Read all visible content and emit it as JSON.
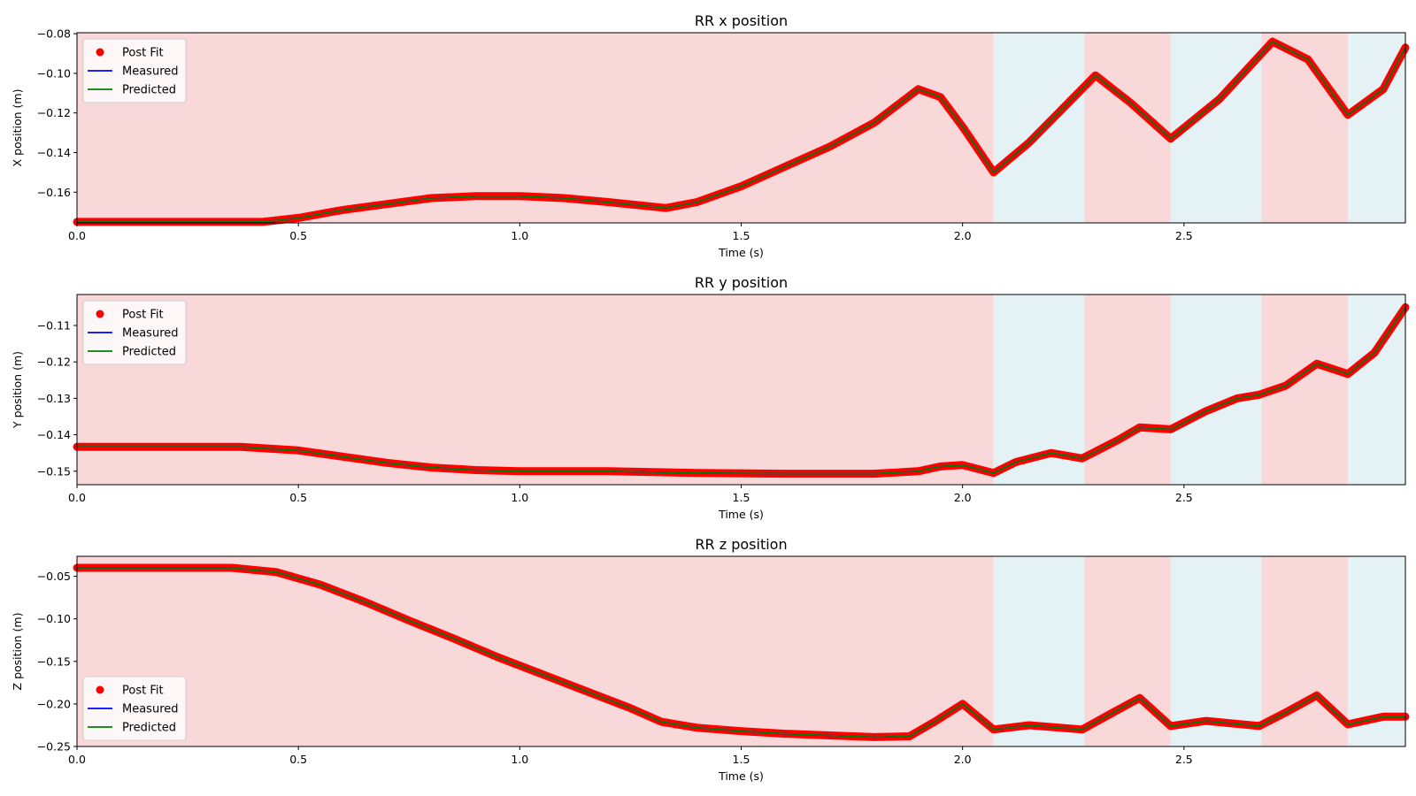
{
  "chart_data": [
    {
      "type": "line",
      "title": "RR x position",
      "xlabel": "Time (s)",
      "ylabel": "X position (m)",
      "xlim": [
        0,
        3.0
      ],
      "ylim": [
        -0.1755,
        -0.0795
      ],
      "xticks": [
        0,
        0.5,
        1.0,
        1.5,
        2.0,
        2.5
      ],
      "xtick_labels": [
        "0.0",
        "0.5",
        "1.0",
        "1.5",
        "2.0",
        "2.5"
      ],
      "yticks": [
        -0.16,
        -0.14,
        -0.12,
        -0.1,
        -0.08
      ],
      "ytick_labels": [
        "−0.16",
        "−0.14",
        "−0.12",
        "−0.10",
        "−0.08"
      ],
      "legend_position": "upper-left",
      "x": [
        0,
        0.1,
        0.2,
        0.3,
        0.42,
        0.5,
        0.6,
        0.7,
        0.8,
        0.9,
        1.0,
        1.1,
        1.2,
        1.33,
        1.4,
        1.5,
        1.6,
        1.7,
        1.8,
        1.9,
        1.95,
        2.0,
        2.07,
        2.15,
        2.3,
        2.38,
        2.47,
        2.58,
        2.7,
        2.78,
        2.87,
        2.95,
        3.0
      ],
      "series": [
        {
          "name": "Post Fit",
          "style": "markers",
          "color": "#ff0000",
          "values": [
            -0.175,
            -0.175,
            -0.175,
            -0.175,
            -0.175,
            -0.173,
            -0.169,
            -0.166,
            -0.163,
            -0.162,
            -0.162,
            -0.163,
            -0.165,
            -0.168,
            -0.165,
            -0.157,
            -0.147,
            -0.137,
            -0.125,
            -0.108,
            -0.112,
            -0.127,
            -0.15,
            -0.135,
            -0.101,
            -0.115,
            -0.133,
            -0.113,
            -0.084,
            -0.093,
            -0.121,
            -0.108,
            -0.087
          ]
        },
        {
          "name": "Measured",
          "style": "line",
          "color": "#0000ff",
          "values": [
            -0.175,
            -0.175,
            -0.175,
            -0.175,
            -0.175,
            -0.173,
            -0.169,
            -0.166,
            -0.163,
            -0.162,
            -0.162,
            -0.163,
            -0.165,
            -0.168,
            -0.165,
            -0.157,
            -0.147,
            -0.137,
            -0.125,
            -0.108,
            -0.112,
            -0.127,
            -0.15,
            -0.135,
            -0.101,
            -0.115,
            -0.133,
            -0.113,
            -0.084,
            -0.093,
            -0.121,
            -0.108,
            -0.087
          ]
        },
        {
          "name": "Predicted",
          "style": "line",
          "color": "#008000",
          "values": [
            -0.175,
            -0.175,
            -0.175,
            -0.175,
            -0.175,
            -0.173,
            -0.169,
            -0.166,
            -0.163,
            -0.162,
            -0.162,
            -0.163,
            -0.165,
            -0.168,
            -0.165,
            -0.157,
            -0.147,
            -0.137,
            -0.125,
            -0.108,
            -0.112,
            -0.127,
            -0.15,
            -0.135,
            -0.101,
            -0.115,
            -0.133,
            -0.113,
            -0.084,
            -0.093,
            -0.121,
            -0.108,
            -0.087
          ]
        }
      ]
    },
    {
      "type": "line",
      "title": "RR y position",
      "xlabel": "Time (s)",
      "ylabel": "Y position (m)",
      "xlim": [
        0,
        3.0
      ],
      "ylim": [
        -0.1537,
        -0.1015
      ],
      "xticks": [
        0,
        0.5,
        1.0,
        1.5,
        2.0,
        2.5
      ],
      "xtick_labels": [
        "0.0",
        "0.5",
        "1.0",
        "1.5",
        "2.0",
        "2.5"
      ],
      "yticks": [
        -0.15,
        -0.14,
        -0.13,
        -0.12,
        -0.11
      ],
      "ytick_labels": [
        "−0.15",
        "−0.14",
        "−0.13",
        "−0.12",
        "−0.11"
      ],
      "legend_position": "upper-left",
      "x": [
        0,
        0.2,
        0.37,
        0.5,
        0.6,
        0.7,
        0.8,
        0.9,
        1.0,
        1.2,
        1.4,
        1.6,
        1.8,
        1.9,
        1.95,
        2.0,
        2.07,
        2.12,
        2.2,
        2.27,
        2.35,
        2.4,
        2.47,
        2.55,
        2.62,
        2.67,
        2.73,
        2.8,
        2.87,
        2.93,
        3.0
      ],
      "series": [
        {
          "name": "Post Fit",
          "style": "markers",
          "color": "#ff0000",
          "values": [
            -0.1433,
            -0.1433,
            -0.1433,
            -0.1443,
            -0.146,
            -0.1477,
            -0.149,
            -0.1497,
            -0.15,
            -0.15,
            -0.1505,
            -0.1507,
            -0.1507,
            -0.15,
            -0.1487,
            -0.1483,
            -0.1505,
            -0.1475,
            -0.145,
            -0.1465,
            -0.1415,
            -0.138,
            -0.1385,
            -0.1335,
            -0.13,
            -0.129,
            -0.1265,
            -0.1205,
            -0.1233,
            -0.1175,
            -0.105
          ]
        },
        {
          "name": "Measured",
          "style": "line",
          "color": "#0000ff",
          "values": [
            -0.1433,
            -0.1433,
            -0.1433,
            -0.1443,
            -0.146,
            -0.1477,
            -0.149,
            -0.1497,
            -0.15,
            -0.15,
            -0.1505,
            -0.1507,
            -0.1507,
            -0.15,
            -0.1487,
            -0.1483,
            -0.1505,
            -0.1475,
            -0.145,
            -0.1465,
            -0.1415,
            -0.138,
            -0.1385,
            -0.1335,
            -0.13,
            -0.129,
            -0.1265,
            -0.1205,
            -0.1233,
            -0.1175,
            -0.105
          ]
        },
        {
          "name": "Predicted",
          "style": "line",
          "color": "#008000",
          "values": [
            -0.1433,
            -0.1433,
            -0.1433,
            -0.1443,
            -0.146,
            -0.1477,
            -0.149,
            -0.1497,
            -0.15,
            -0.15,
            -0.1505,
            -0.1507,
            -0.1507,
            -0.15,
            -0.1487,
            -0.1483,
            -0.1505,
            -0.1475,
            -0.145,
            -0.1465,
            -0.1415,
            -0.138,
            -0.1385,
            -0.1335,
            -0.13,
            -0.129,
            -0.1265,
            -0.1205,
            -0.1233,
            -0.1175,
            -0.105
          ]
        }
      ]
    },
    {
      "type": "line",
      "title": "RR z position",
      "xlabel": "Time (s)",
      "ylabel": "Z position (m)",
      "xlim": [
        0,
        3.0
      ],
      "ylim": [
        -0.25,
        -0.0265
      ],
      "xticks": [
        0,
        0.5,
        1.0,
        1.5,
        2.0,
        2.5
      ],
      "xtick_labels": [
        "0.0",
        "0.5",
        "1.0",
        "1.5",
        "2.0",
        "2.5"
      ],
      "yticks": [
        -0.25,
        -0.2,
        -0.15,
        -0.1,
        -0.05
      ],
      "ytick_labels": [
        "−0.25",
        "−0.20",
        "−0.15",
        "−0.10",
        "−0.05"
      ],
      "legend_position": "lower-left",
      "x": [
        0,
        0.2,
        0.35,
        0.45,
        0.55,
        0.65,
        0.75,
        0.85,
        0.95,
        1.05,
        1.15,
        1.25,
        1.32,
        1.4,
        1.5,
        1.6,
        1.7,
        1.8,
        1.88,
        1.94,
        2.0,
        2.07,
        2.15,
        2.27,
        2.34,
        2.4,
        2.47,
        2.55,
        2.67,
        2.73,
        2.8,
        2.87,
        2.95,
        3.0
      ],
      "series": [
        {
          "name": "Post Fit",
          "style": "markers",
          "color": "#ff0000",
          "values": [
            -0.04,
            -0.04,
            -0.04,
            -0.045,
            -0.06,
            -0.08,
            -0.102,
            -0.123,
            -0.145,
            -0.165,
            -0.185,
            -0.205,
            -0.221,
            -0.228,
            -0.232,
            -0.235,
            -0.237,
            -0.239,
            -0.238,
            -0.22,
            -0.2,
            -0.23,
            -0.225,
            -0.23,
            -0.21,
            -0.193,
            -0.226,
            -0.22,
            -0.226,
            -0.21,
            -0.19,
            -0.224,
            -0.215,
            -0.215
          ]
        },
        {
          "name": "Measured",
          "style": "line",
          "color": "#0000ff",
          "values": [
            -0.04,
            -0.04,
            -0.04,
            -0.045,
            -0.06,
            -0.08,
            -0.102,
            -0.123,
            -0.145,
            -0.165,
            -0.185,
            -0.205,
            -0.221,
            -0.228,
            -0.232,
            -0.235,
            -0.237,
            -0.239,
            -0.238,
            -0.22,
            -0.2,
            -0.23,
            -0.225,
            -0.23,
            -0.21,
            -0.193,
            -0.226,
            -0.22,
            -0.226,
            -0.21,
            -0.19,
            -0.224,
            -0.215,
            -0.215
          ]
        },
        {
          "name": "Predicted",
          "style": "line",
          "color": "#008000",
          "values": [
            -0.04,
            -0.04,
            -0.04,
            -0.045,
            -0.06,
            -0.08,
            -0.102,
            -0.123,
            -0.145,
            -0.165,
            -0.185,
            -0.205,
            -0.221,
            -0.228,
            -0.232,
            -0.235,
            -0.237,
            -0.239,
            -0.238,
            -0.22,
            -0.2,
            -0.23,
            -0.225,
            -0.23,
            -0.21,
            -0.193,
            -0.226,
            -0.22,
            -0.226,
            -0.21,
            -0.19,
            -0.224,
            -0.215,
            -0.215
          ]
        }
      ]
    }
  ],
  "phases": [
    {
      "start": 0.0,
      "end": 2.07,
      "color": "#f9d8d9"
    },
    {
      "start": 2.07,
      "end": 2.275,
      "color": "#e4f2f6"
    },
    {
      "start": 2.275,
      "end": 2.47,
      "color": "#f9d8d9"
    },
    {
      "start": 2.47,
      "end": 2.675,
      "color": "#e4f2f6"
    },
    {
      "start": 2.675,
      "end": 2.87,
      "color": "#f9d8d9"
    },
    {
      "start": 2.87,
      "end": 3.0,
      "color": "#e4f2f6"
    }
  ]
}
